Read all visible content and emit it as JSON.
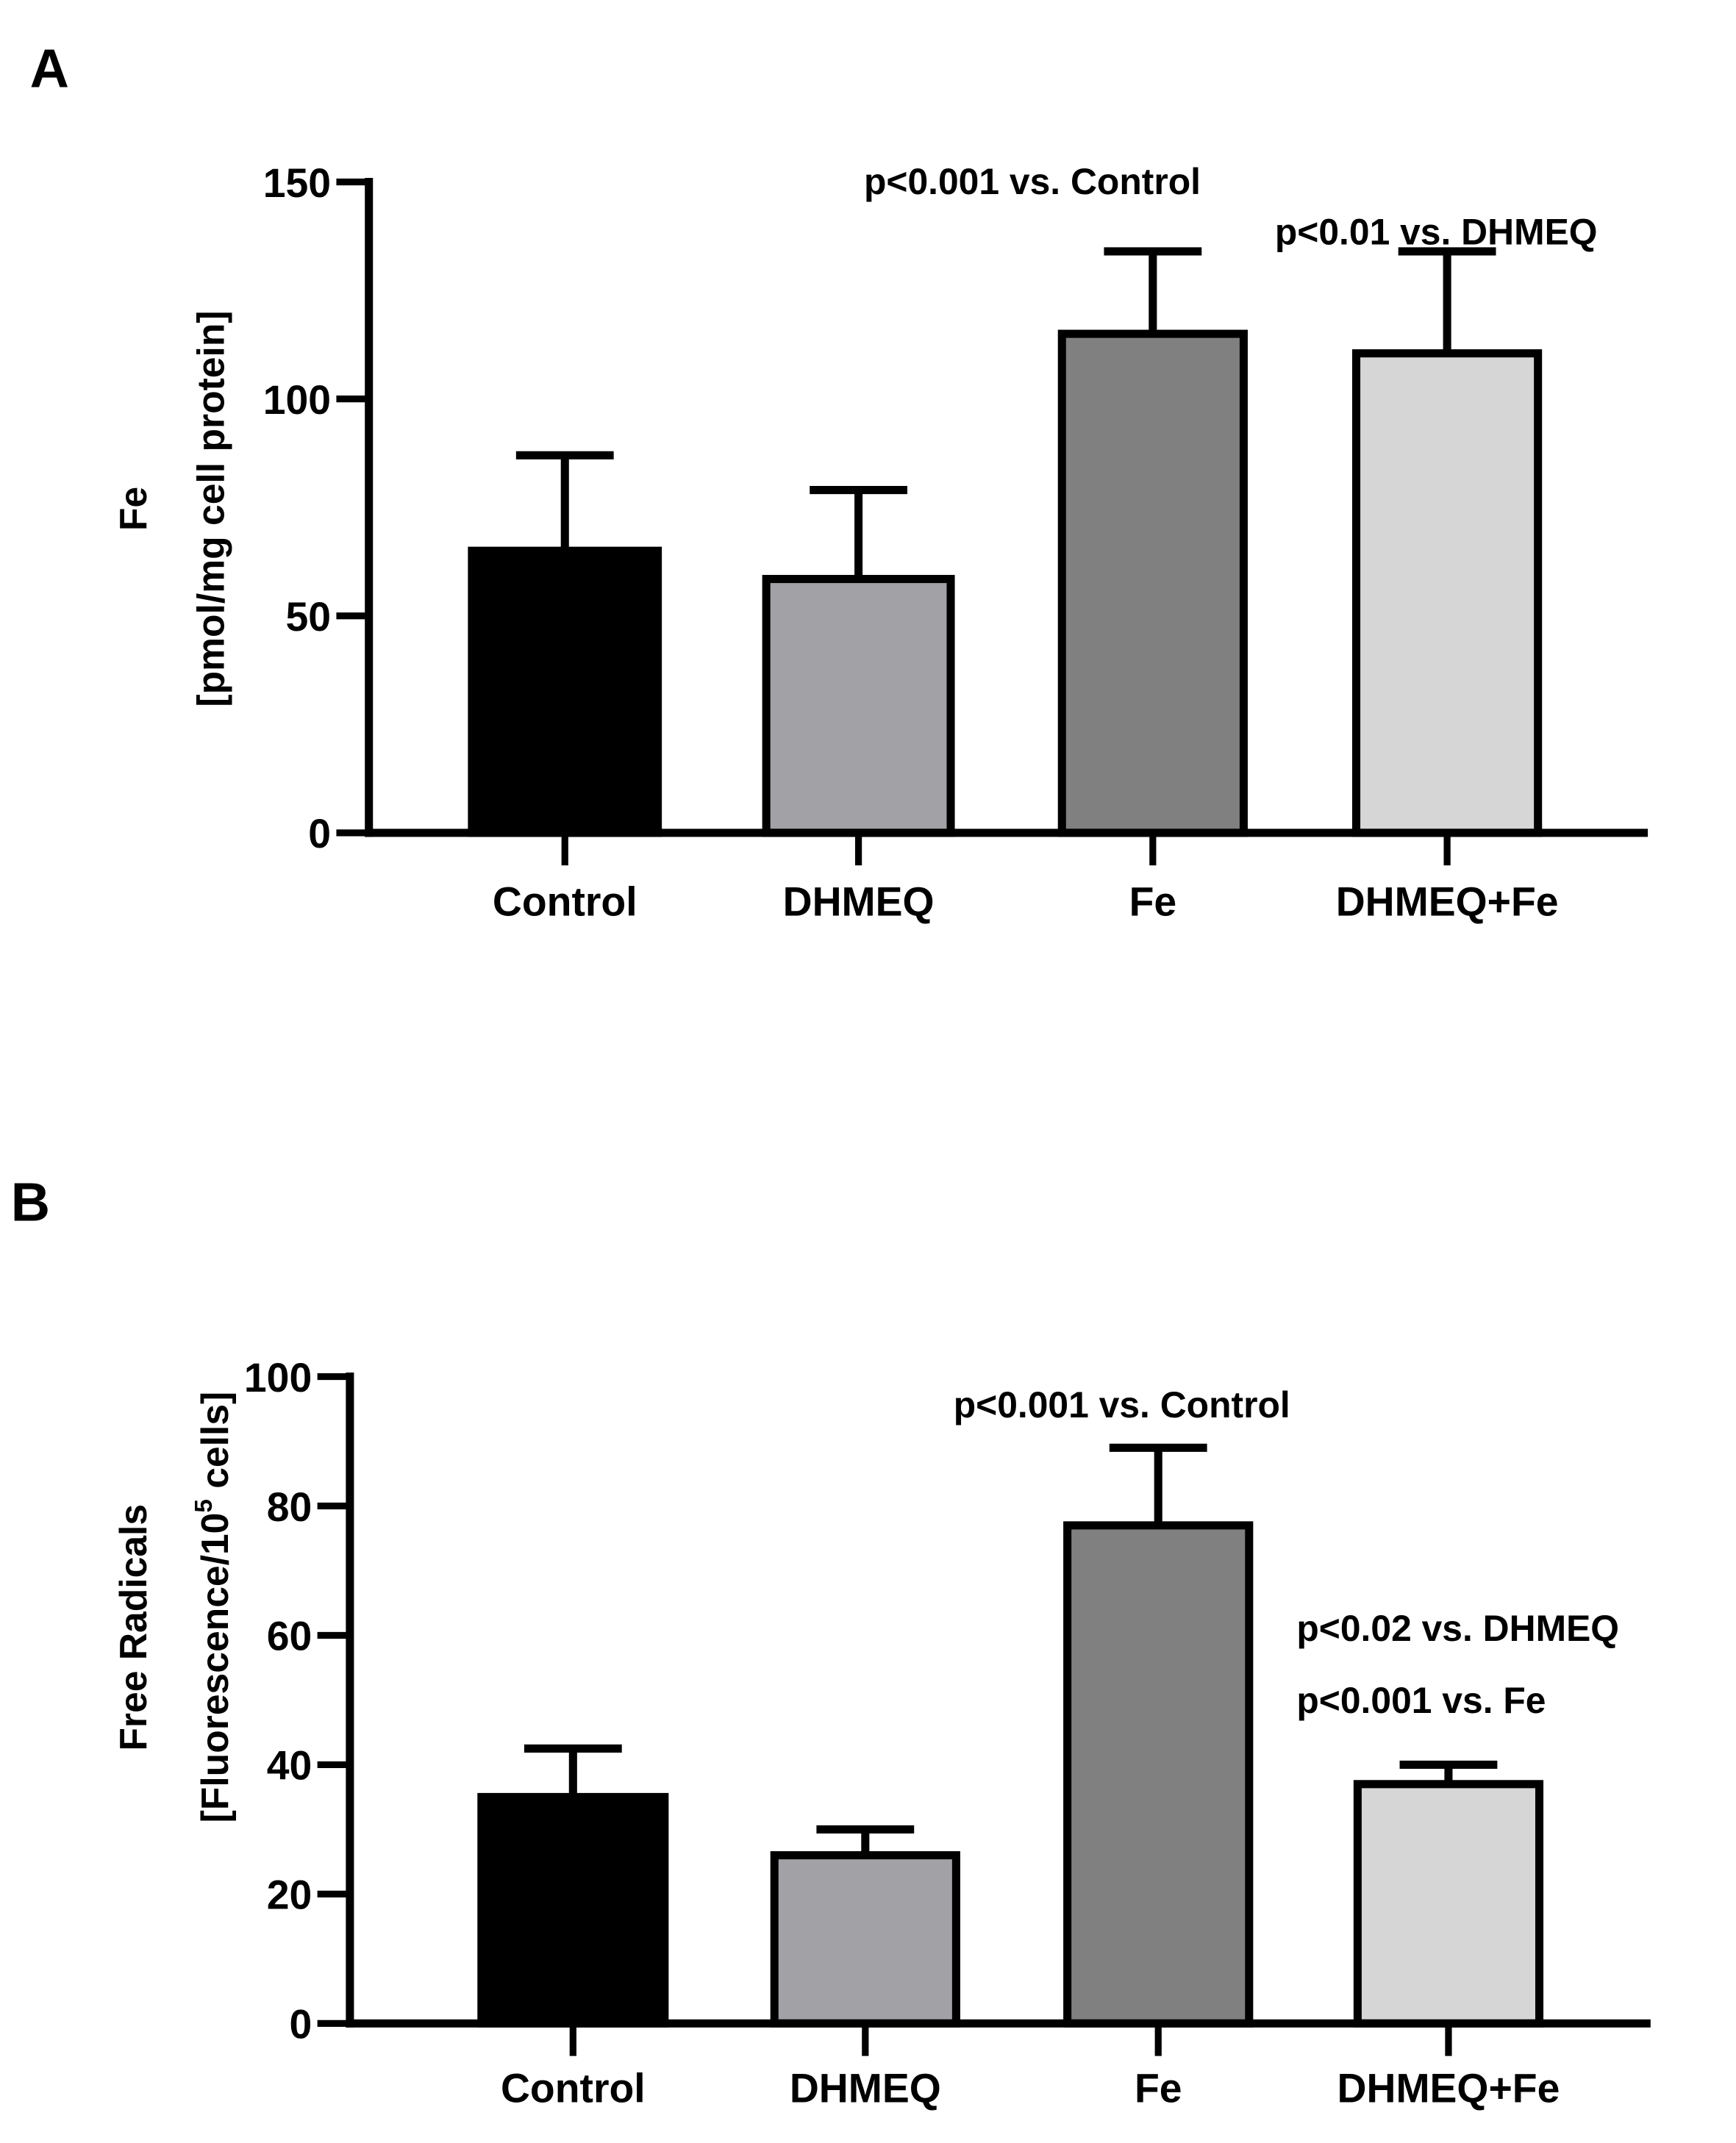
{
  "chart_data": [
    {
      "panel_label": "A",
      "type": "bar",
      "categories": [
        "Control",
        "DHMEQ",
        "Fe",
        "DHMEQ+Fe"
      ],
      "values": [
        65,
        58.5,
        115,
        110.5
      ],
      "error_upper": [
        87,
        79,
        134,
        134
      ],
      "colors": [
        "#000000",
        "#a2a1a6",
        "#808080",
        "#d6d6d6"
      ],
      "ylabel_line1": "Fe",
      "ylabel_line2": "[pmol/mg cell protein]",
      "ylim": [
        0,
        150
      ],
      "yticks": [
        0,
        50,
        100,
        150
      ],
      "ytick_labels": [
        "0",
        "50",
        "100",
        "150"
      ],
      "annotations": [
        "p<0.001 vs. Control",
        "p<0.01 vs. DHMEQ"
      ]
    },
    {
      "panel_label": "B",
      "type": "bar",
      "categories": [
        "Control",
        "DHMEQ",
        "Fe",
        "DHMEQ+Fe"
      ],
      "values": [
        35,
        26,
        77,
        37
      ],
      "error_upper": [
        42.5,
        30,
        89,
        40
      ],
      "colors": [
        "#000000",
        "#a2a1a6",
        "#808080",
        "#d6d6d6"
      ],
      "ylabel_line1": "Free Radicals",
      "ylabel_line2_prefix": "[Fluorescence/10",
      "ylabel_line2_sup": "5",
      "ylabel_line2_suffix": " cells]",
      "ylim": [
        0,
        100
      ],
      "yticks": [
        0,
        20,
        40,
        60,
        80,
        100
      ],
      "ytick_labels": [
        "0",
        "20",
        "40",
        "60",
        "80",
        "100"
      ],
      "annotations": [
        "p<0.001 vs. Control",
        "p<0.02 vs. DHMEQ",
        "p<0.001 vs. Fe"
      ]
    }
  ]
}
